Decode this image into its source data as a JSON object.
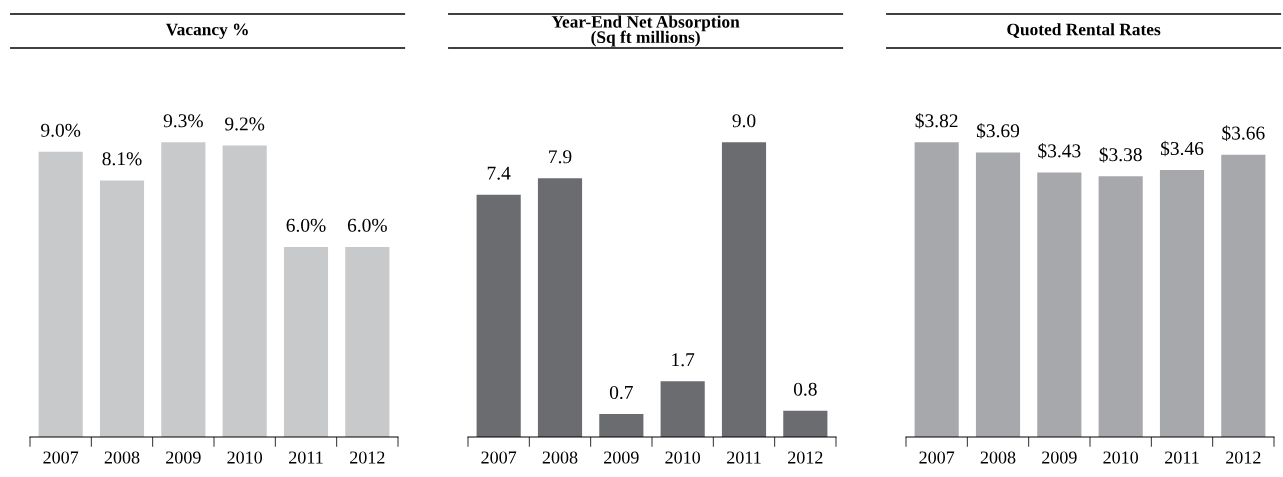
{
  "chart_data": [
    {
      "type": "bar",
      "title": "Vacancy %",
      "categories": [
        "2007",
        "2008",
        "2009",
        "2010",
        "2011",
        "2012"
      ],
      "values": [
        9.0,
        8.1,
        9.3,
        9.2,
        6.0,
        6.0
      ],
      "color": "#c8c9cb",
      "value_labels": [
        "9.0%",
        "8.1%",
        "9.3%",
        "9.2%",
        "6.0%",
        "6.0%"
      ]
    },
    {
      "type": "bar",
      "title": "Year-End Net Absorption\n(Sq ft millions)",
      "categories": [
        "2007",
        "2008",
        "2009",
        "2010",
        "2011",
        "2012"
      ],
      "values": [
        7.4,
        7.9,
        0.7,
        1.7,
        9.0,
        0.8
      ],
      "color": "#6b6c70",
      "value_labels": [
        "7.4",
        "7.9",
        "0.7",
        "1.7",
        "9.0",
        "0.8"
      ]
    },
    {
      "type": "bar",
      "title": "Quoted Rental Rates",
      "categories": [
        "2007",
        "2008",
        "2009",
        "2010",
        "2011",
        "2012"
      ],
      "values": [
        3.82,
        3.69,
        3.43,
        3.38,
        3.46,
        3.66
      ],
      "color": "#a7a8ac",
      "value_labels": [
        "$3.82",
        "$3.69",
        "$3.43",
        "$3.38",
        "$3.46",
        "$3.66"
      ]
    }
  ]
}
